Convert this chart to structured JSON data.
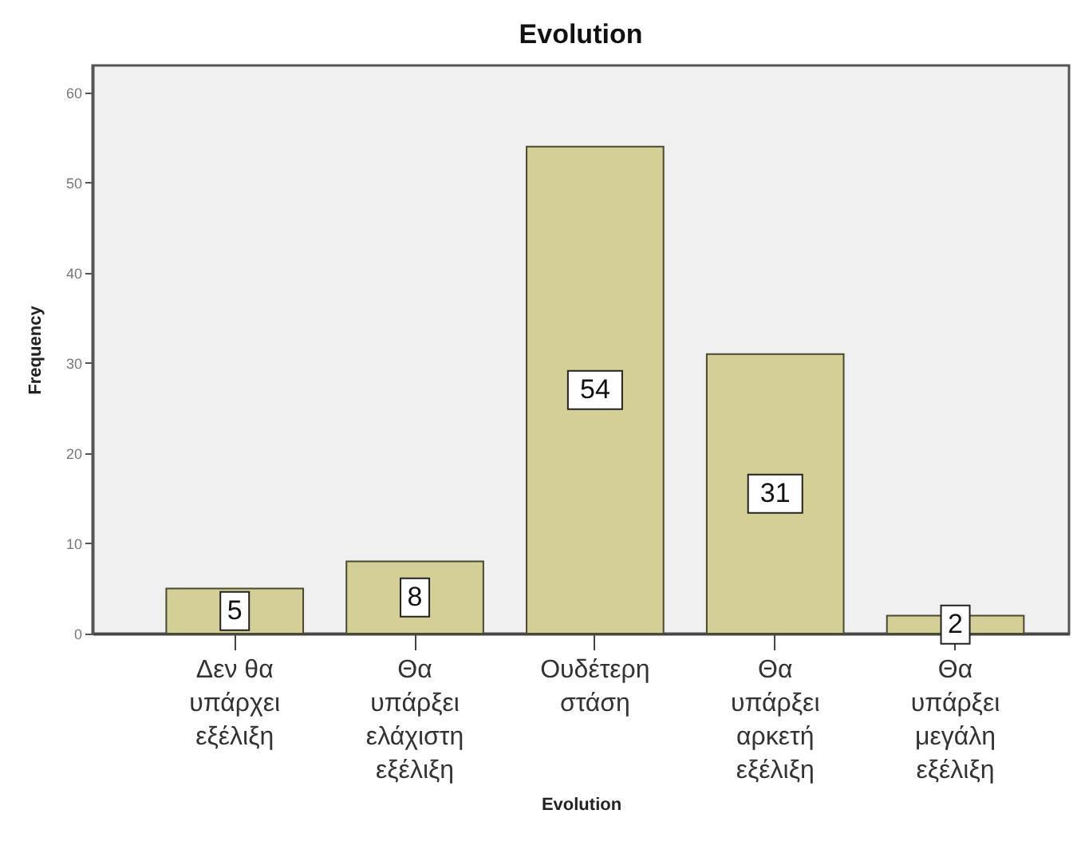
{
  "chart_data": {
    "type": "bar",
    "title": "Evolution",
    "xlabel": "Evolution",
    "ylabel": "Frequency",
    "categories": [
      "Δεν θα υπάρχει εξέλιξη",
      "Θα υπάρξει ελάχιστη εξέλιξη",
      "Ουδέτερη στάση",
      "Θα υπάρξει αρκετή εξέλιξη",
      "Θα υπάρξει μεγάλη εξέλιξη"
    ],
    "values": [
      5,
      8,
      54,
      31,
      2
    ],
    "color": "#d4cf96",
    "ylim": [
      0,
      63
    ],
    "yticks": [
      0,
      10,
      20,
      30,
      40,
      50,
      60
    ],
    "grid": false,
    "data_labels": true
  }
}
